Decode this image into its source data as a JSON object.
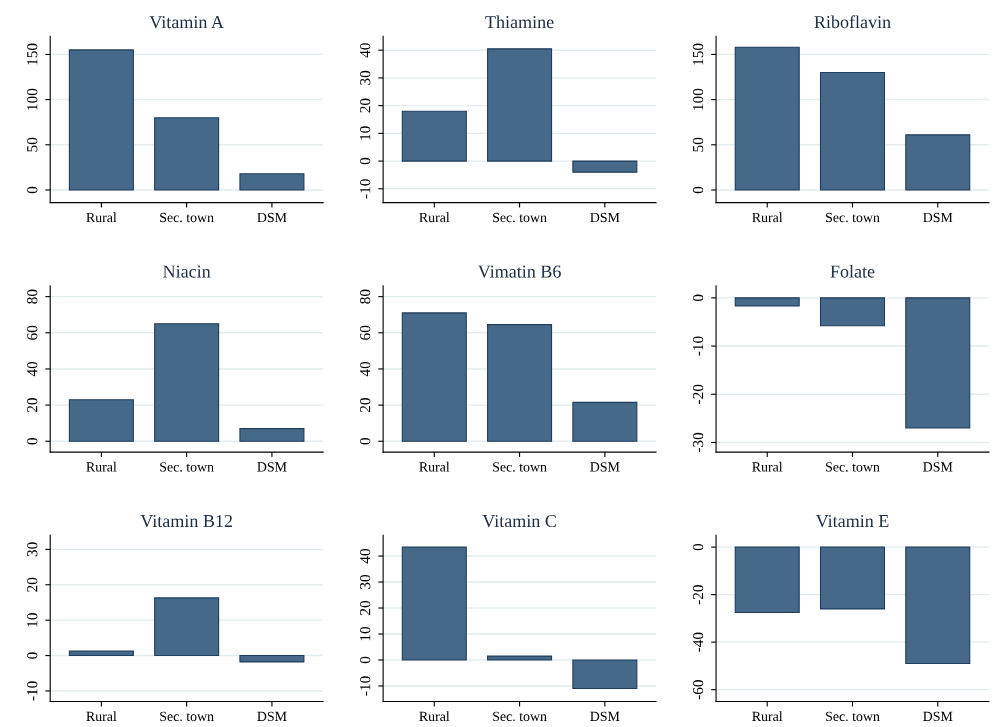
{
  "chart_data": [
    {
      "type": "bar",
      "title": "Vitamin A",
      "categories": [
        "Rural",
        "Sec. town",
        "DSM"
      ],
      "values": [
        155,
        80,
        18
      ],
      "color": "#46698a",
      "ylim": [
        -14,
        170
      ],
      "yticks": [
        0,
        50,
        100,
        150
      ],
      "grid": "y"
    },
    {
      "type": "bar",
      "title": "Thiamine",
      "categories": [
        "Rural",
        "Sec. town",
        "DSM"
      ],
      "values": [
        18,
        40.5,
        -4
      ],
      "color": "#46698a",
      "ylim": [
        -15,
        45
      ],
      "yticks": [
        -10,
        0,
        10,
        20,
        30,
        40
      ],
      "grid": "y"
    },
    {
      "type": "bar",
      "title": "Riboflavin",
      "categories": [
        "Rural",
        "Sec. town",
        "DSM"
      ],
      "values": [
        158,
        130,
        61
      ],
      "color": "#46698a",
      "ylim": [
        -14,
        170
      ],
      "yticks": [
        0,
        50,
        100,
        150
      ],
      "grid": "y"
    },
    {
      "type": "bar",
      "title": "Niacin",
      "categories": [
        "Rural",
        "Sec. town",
        "DSM"
      ],
      "values": [
        23,
        65,
        7
      ],
      "color": "#46698a",
      "ylim": [
        -6,
        86
      ],
      "yticks": [
        0,
        20,
        40,
        60,
        80
      ],
      "grid": "y"
    },
    {
      "type": "bar",
      "title": "Vimatin B6",
      "categories": [
        "Rural",
        "Sec. town",
        "DSM"
      ],
      "values": [
        71,
        64.5,
        21.5
      ],
      "color": "#46698a",
      "ylim": [
        -6,
        86
      ],
      "yticks": [
        0,
        20,
        40,
        60,
        80
      ],
      "grid": "y"
    },
    {
      "type": "bar",
      "title": "Folate",
      "categories": [
        "Rural",
        "Sec. town",
        "DSM"
      ],
      "values": [
        -1.7,
        -5.8,
        -27
      ],
      "color": "#46698a",
      "ylim": [
        -32,
        2.5
      ],
      "yticks": [
        -30,
        -20,
        -10,
        0
      ],
      "grid": "y"
    },
    {
      "type": "bar",
      "title": "Vitamin B12",
      "categories": [
        "Rural",
        "Sec. town",
        "DSM"
      ],
      "values": [
        1.3,
        16.3,
        -1.8
      ],
      "color": "#46698a",
      "ylim": [
        -13,
        34
      ],
      "yticks": [
        -10,
        0,
        10,
        20,
        30
      ],
      "grid": "y"
    },
    {
      "type": "bar",
      "title": "Vitamin C",
      "categories": [
        "Rural",
        "Sec. town",
        "DSM"
      ],
      "values": [
        43.5,
        1.5,
        -11
      ],
      "color": "#46698a",
      "ylim": [
        -16,
        48
      ],
      "yticks": [
        -10,
        0,
        10,
        20,
        30,
        40
      ],
      "grid": "y"
    },
    {
      "type": "bar",
      "title": "Vitamin E",
      "categories": [
        "Rural",
        "Sec. town",
        "DSM"
      ],
      "values": [
        -27.5,
        -26,
        -49
      ],
      "color": "#46698a",
      "ylim": [
        -65,
        5
      ],
      "yticks": [
        -60,
        -40,
        -20,
        0
      ],
      "grid": "y"
    }
  ]
}
